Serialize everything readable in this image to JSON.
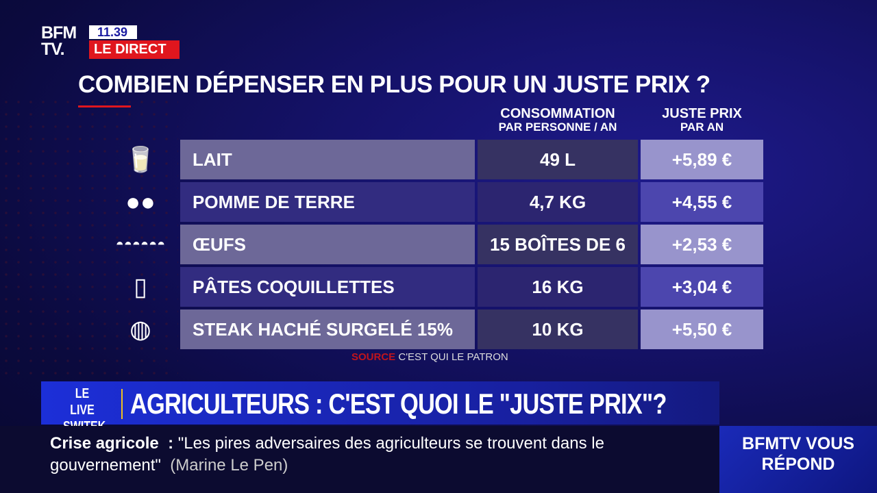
{
  "channel": {
    "logo": "BFM TV.",
    "time": "11.39",
    "live_label": "LE DIRECT"
  },
  "title": "COMBIEN DÉPENSER EN PLUS POUR UN JUSTE PRIX ?",
  "headers": {
    "consumption_main": "CONSOMMATION",
    "consumption_sub": "PAR PERSONNE / AN",
    "price_main": "JUSTE PRIX",
    "price_sub": "PAR AN"
  },
  "rows": [
    {
      "icon": "milk-bottle-icon",
      "product": "LAIT",
      "consumption": "49 L",
      "price": "+5,89 €"
    },
    {
      "icon": "potato-icon",
      "product": "POMME DE TERRE",
      "consumption": "4,7 KG",
      "price": "+4,55 €"
    },
    {
      "icon": "egg-carton-icon",
      "product": "ŒUFS",
      "consumption": "15 BOÎTES DE 6",
      "price": "+2,53 €"
    },
    {
      "icon": "pasta-bag-icon",
      "product": "PÂTES COQUILLETTES",
      "consumption": "16 KG",
      "price": "+3,04 €"
    },
    {
      "icon": "steak-icon",
      "product": "STEAK HACHÉ SURGELÉ 15%",
      "consumption": "10 KG",
      "price": "+5,50 €"
    }
  ],
  "source": {
    "label": "SOURCE",
    "value": "C'EST QUI LE PATRON"
  },
  "banner": {
    "show_l1": "LE LIVE",
    "show_l2": "SWITEK",
    "headline": "AGRICULTEURS : C'EST QUOI LE \"JUSTE PRIX\"?"
  },
  "ticker": {
    "topic": "Crise agricole",
    "separator": ":",
    "quote": "\"Les pires adversaires des agriculteurs se trouvent dans le gouvernement\"",
    "author": "(Marine Le Pen)"
  },
  "corner": {
    "l1": "BFMTV VOUS",
    "l2": "RÉPOND"
  },
  "colors": {
    "accent_red": "#e0161e",
    "accent_blue": "#1c2fd8",
    "highlight_yellow": "#f0c020"
  }
}
